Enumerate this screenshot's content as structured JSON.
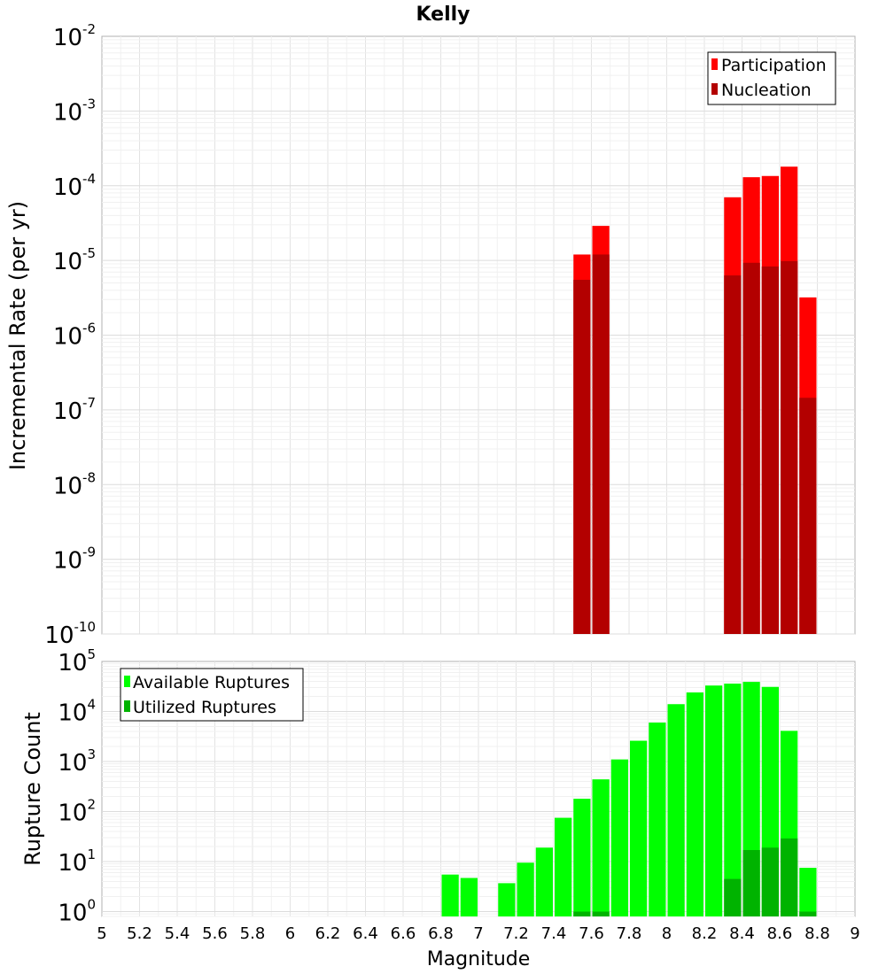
{
  "chart_data": [
    {
      "type": "bar",
      "title": "Kelly",
      "xlabel": "",
      "ylabel": "Incremental Rate (per yr)",
      "xlim": [
        5,
        9
      ],
      "ylim": [
        1e-10,
        0.01
      ],
      "y_scale": "log",
      "grid": true,
      "legend_position": "top-right",
      "bar_width": 0.1,
      "y_ticks": [
        {
          "base": "10",
          "exp": "-10",
          "value": 1e-10
        },
        {
          "base": "10",
          "exp": "-9",
          "value": 1e-09
        },
        {
          "base": "10",
          "exp": "-8",
          "value": 1e-08
        },
        {
          "base": "10",
          "exp": "-7",
          "value": 1e-07
        },
        {
          "base": "10",
          "exp": "-6",
          "value": 1e-06
        },
        {
          "base": "10",
          "exp": "-5",
          "value": 1e-05
        },
        {
          "base": "10",
          "exp": "-4",
          "value": 0.0001
        },
        {
          "base": "10",
          "exp": "-3",
          "value": 0.001
        },
        {
          "base": "10",
          "exp": "-2",
          "value": 0.01
        }
      ],
      "series": [
        {
          "name": "Participation",
          "color": "#ff0000",
          "points": [
            {
              "x": 7.55,
              "y": 1.2e-05
            },
            {
              "x": 7.65,
              "y": 2.9e-05
            },
            {
              "x": 8.35,
              "y": 7e-05
            },
            {
              "x": 8.45,
              "y": 0.00013
            },
            {
              "x": 8.55,
              "y": 0.000135
            },
            {
              "x": 8.65,
              "y": 0.00018
            },
            {
              "x": 8.75,
              "y": 3.2e-06
            }
          ]
        },
        {
          "name": "Nucleation",
          "color": "#b30000",
          "points": [
            {
              "x": 7.55,
              "y": 5.5e-06
            },
            {
              "x": 7.65,
              "y": 1.2e-05
            },
            {
              "x": 8.35,
              "y": 6.3e-06
            },
            {
              "x": 8.45,
              "y": 9.3e-06
            },
            {
              "x": 8.55,
              "y": 8.3e-06
            },
            {
              "x": 8.65,
              "y": 9.8e-06
            },
            {
              "x": 8.75,
              "y": 1.45e-07
            }
          ]
        }
      ]
    },
    {
      "type": "bar",
      "title": "",
      "xlabel": "Magnitude",
      "ylabel": "Rupture Count",
      "xlim": [
        5,
        9
      ],
      "ylim": [
        0.8,
        100000.0
      ],
      "y_scale": "log",
      "grid": true,
      "legend_position": "top-left",
      "bar_width": 0.1,
      "x_ticks": [
        "5",
        "5.2",
        "5.4",
        "5.6",
        "5.8",
        "6",
        "6.2",
        "6.4",
        "6.6",
        "6.8",
        "7",
        "7.2",
        "7.4",
        "7.6",
        "7.8",
        "8",
        "8.2",
        "8.4",
        "8.6",
        "8.8",
        "9"
      ],
      "y_ticks": [
        {
          "base": "10",
          "exp": "0",
          "value": 1
        },
        {
          "base": "10",
          "exp": "1",
          "value": 10
        },
        {
          "base": "10",
          "exp": "2",
          "value": 100
        },
        {
          "base": "10",
          "exp": "3",
          "value": 1000
        },
        {
          "base": "10",
          "exp": "4",
          "value": 10000
        },
        {
          "base": "10",
          "exp": "5",
          "value": 100000
        }
      ],
      "series": [
        {
          "name": "Available Ruptures",
          "color": "#00ff00",
          "points": [
            {
              "x": 6.85,
              "y": 5.5
            },
            {
              "x": 6.95,
              "y": 4.7
            },
            {
              "x": 7.15,
              "y": 3.7
            },
            {
              "x": 7.25,
              "y": 9.5
            },
            {
              "x": 7.35,
              "y": 19
            },
            {
              "x": 7.45,
              "y": 75
            },
            {
              "x": 7.55,
              "y": 180
            },
            {
              "x": 7.65,
              "y": 440
            },
            {
              "x": 7.75,
              "y": 1100
            },
            {
              "x": 7.85,
              "y": 2600
            },
            {
              "x": 7.95,
              "y": 6000
            },
            {
              "x": 8.05,
              "y": 14000
            },
            {
              "x": 8.15,
              "y": 24000
            },
            {
              "x": 8.25,
              "y": 33000
            },
            {
              "x": 8.35,
              "y": 36000
            },
            {
              "x": 8.45,
              "y": 39000
            },
            {
              "x": 8.55,
              "y": 31000
            },
            {
              "x": 8.65,
              "y": 4100
            },
            {
              "x": 8.75,
              "y": 7.5
            }
          ]
        },
        {
          "name": "Utilized Ruptures",
          "color": "#00b300",
          "points": [
            {
              "x": 7.55,
              "y": 1
            },
            {
              "x": 7.65,
              "y": 1
            },
            {
              "x": 8.35,
              "y": 4.5
            },
            {
              "x": 8.45,
              "y": 17
            },
            {
              "x": 8.55,
              "y": 19
            },
            {
              "x": 8.65,
              "y": 29
            },
            {
              "x": 8.75,
              "y": 1
            }
          ]
        }
      ]
    }
  ]
}
